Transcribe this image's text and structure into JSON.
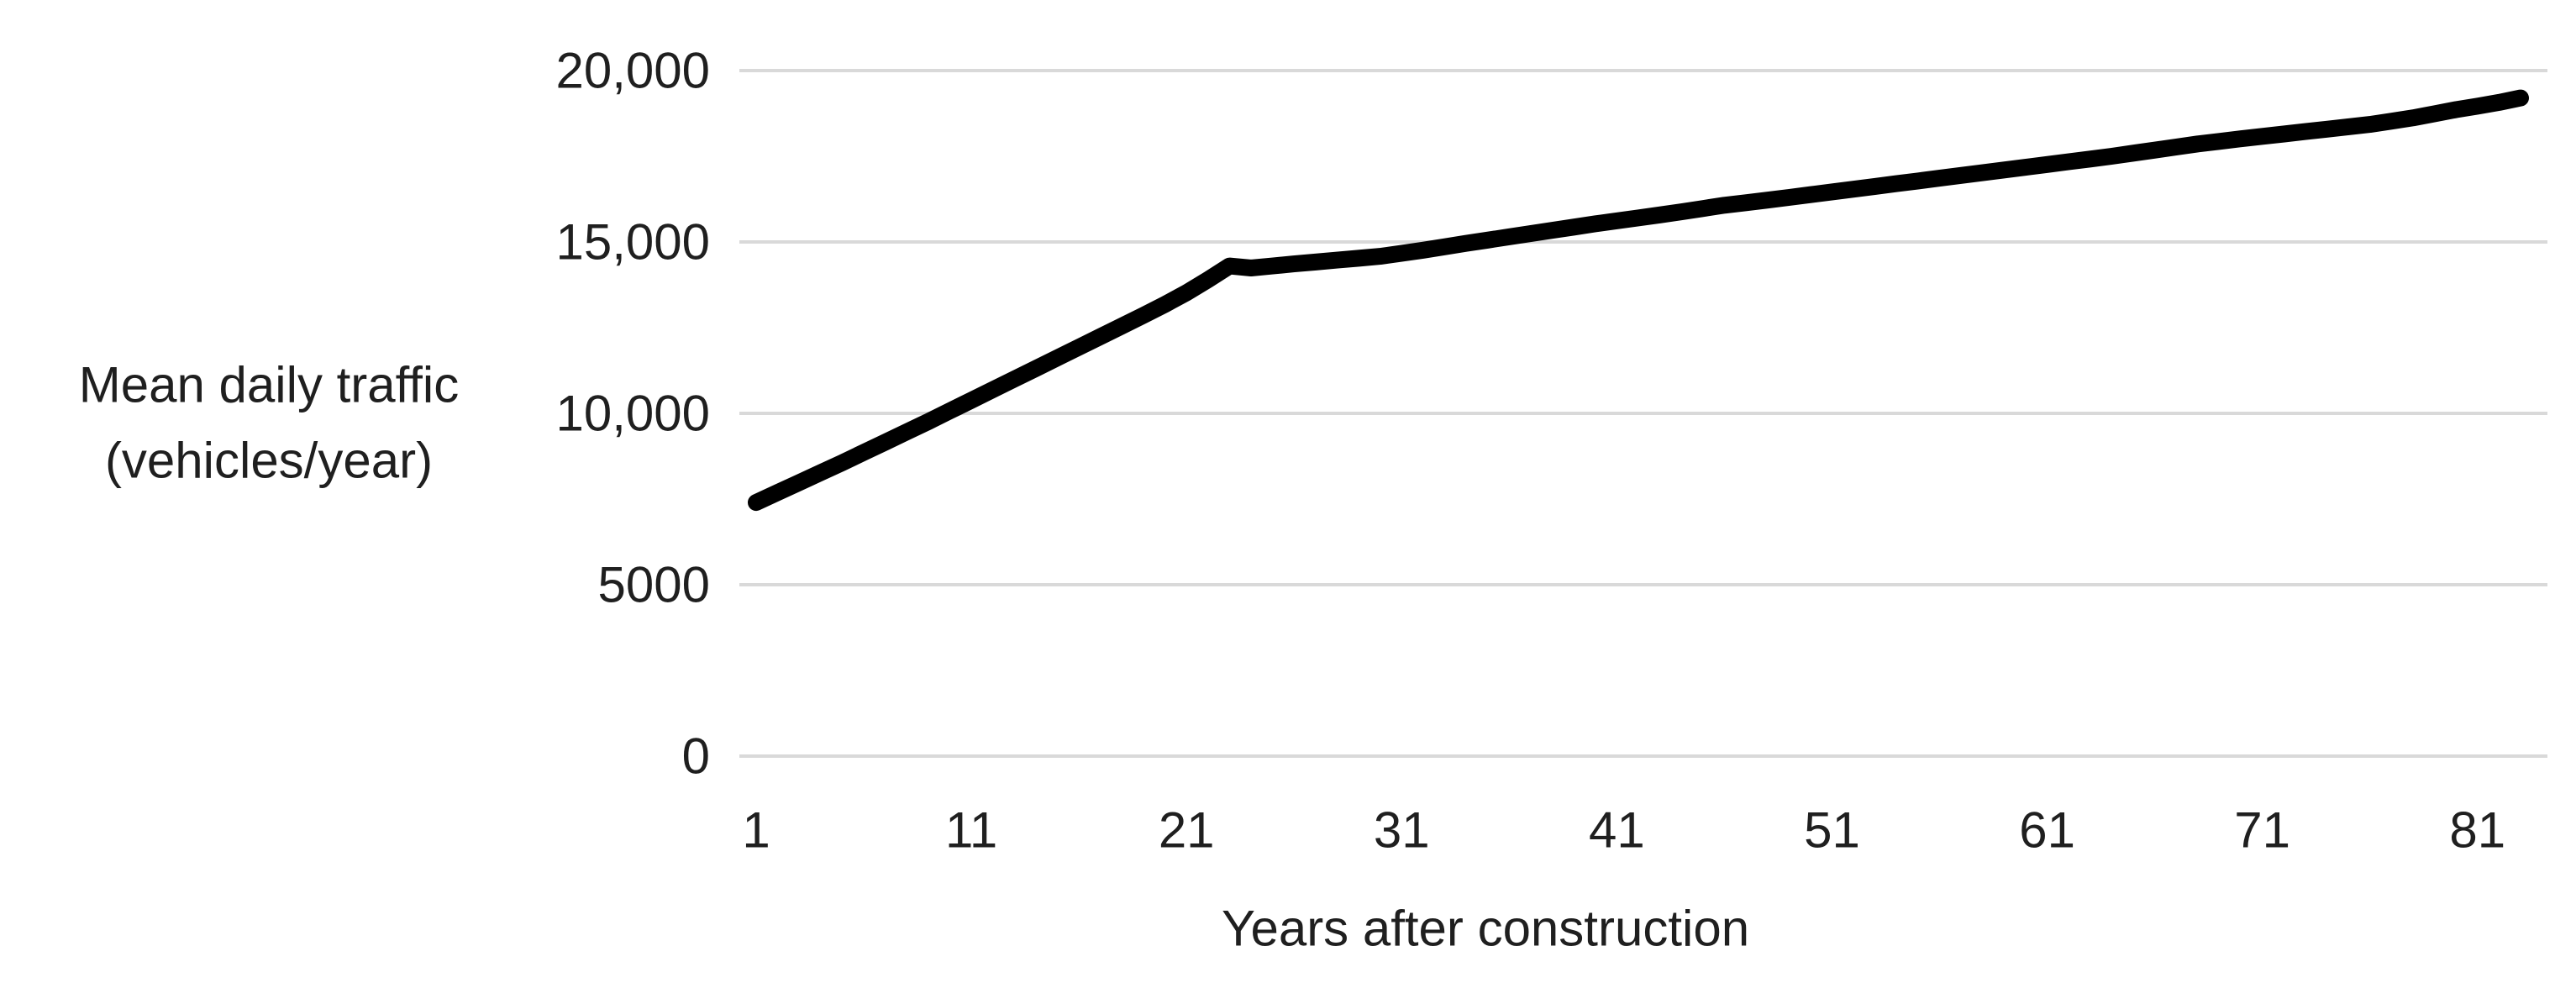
{
  "chart_data": {
    "type": "line",
    "title": "",
    "xlabel": "Years after construction",
    "ylabel_line1": "Mean daily traffic",
    "ylabel_line2": "(vehicles/year)",
    "legend": "none",
    "grid": "horizontal",
    "xlim": [
      1,
      83
    ],
    "ylim": [
      0,
      20000
    ],
    "x_ticks": [
      1,
      11,
      21,
      31,
      41,
      51,
      61,
      71,
      81
    ],
    "y_ticks": [
      {
        "value": 0,
        "label": "0"
      },
      {
        "value": 5000,
        "label": "5000"
      },
      {
        "value": 10000,
        "label": "10,000"
      },
      {
        "value": 15000,
        "label": "15,000"
      },
      {
        "value": 20000,
        "label": "20,000"
      }
    ],
    "colors": {
      "line": "#000000",
      "gridline": "#d9d9d9",
      "text": "#1f1f1f",
      "background": "#ffffff"
    },
    "series": [
      {
        "name": "Mean daily traffic",
        "x": [
          1,
          2,
          3,
          4,
          5,
          6,
          7,
          8,
          9,
          10,
          11,
          12,
          13,
          14,
          15,
          16,
          17,
          18,
          19,
          20,
          21,
          22,
          23,
          24,
          25,
          26,
          27,
          28,
          29,
          30,
          31,
          32,
          33,
          34,
          35,
          36,
          37,
          38,
          39,
          40,
          41,
          42,
          43,
          44,
          45,
          46,
          47,
          48,
          49,
          50,
          51,
          52,
          53,
          54,
          55,
          56,
          57,
          58,
          59,
          60,
          61,
          62,
          63,
          64,
          65,
          66,
          67,
          68,
          69,
          70,
          71,
          72,
          73,
          74,
          75,
          76,
          77,
          78,
          79,
          80,
          81,
          82,
          83
        ],
        "values": [
          7400,
          7690,
          7980,
          8270,
          8560,
          8860,
          9160,
          9460,
          9760,
          10070,
          10380,
          10690,
          11000,
          11310,
          11620,
          11930,
          12240,
          12550,
          12860,
          13180,
          13520,
          13900,
          14300,
          14240,
          14300,
          14360,
          14415,
          14470,
          14525,
          14580,
          14670,
          14760,
          14860,
          14960,
          15055,
          15150,
          15245,
          15340,
          15435,
          15530,
          15615,
          15700,
          15790,
          15880,
          15975,
          16070,
          16145,
          16220,
          16300,
          16380,
          16460,
          16540,
          16620,
          16700,
          16780,
          16860,
          16940,
          17020,
          17100,
          17180,
          17260,
          17340,
          17420,
          17500,
          17590,
          17680,
          17770,
          17860,
          17935,
          18010,
          18080,
          18150,
          18220,
          18290,
          18360,
          18430,
          18525,
          18620,
          18740,
          18860,
          18960,
          19070,
          19200
        ]
      }
    ]
  }
}
